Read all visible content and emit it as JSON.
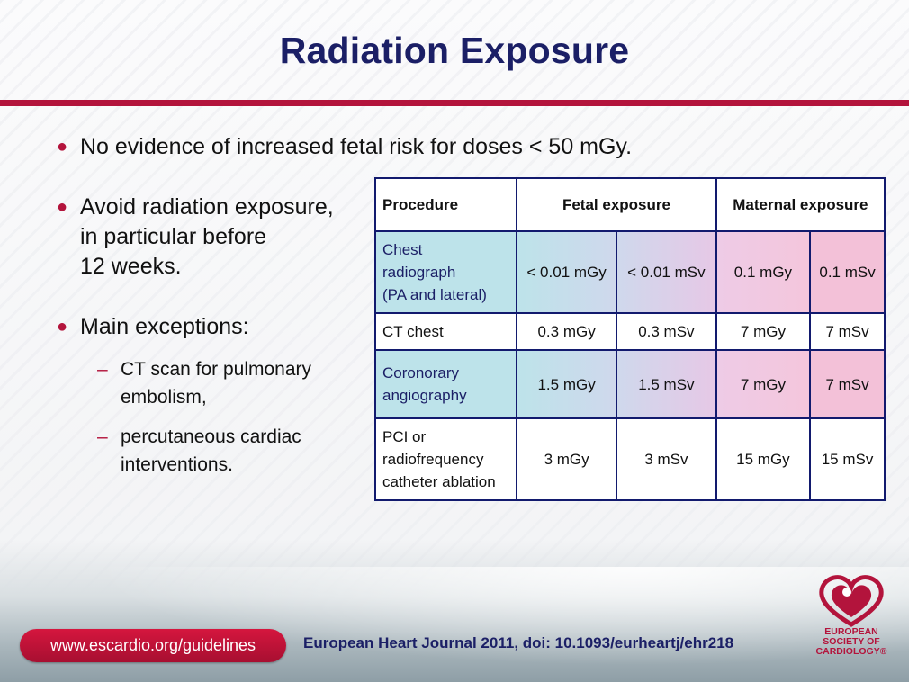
{
  "title": "Radiation Exposure",
  "bullets": {
    "b1": "No evidence of increased fetal risk for doses < 50 mGy.",
    "b2_lines": [
      "Avoid radiation exposure,",
      "in particular before",
      "12 weeks."
    ],
    "b3": "Main exceptions:",
    "subs": [
      [
        "CT scan for pulmonary",
        "embolism,"
      ],
      [
        "percutaneous cardiac",
        "interventions."
      ]
    ]
  },
  "table": {
    "headers": {
      "procedure": "Procedure",
      "fetal": "Fetal exposure",
      "maternal": "Maternal exposure"
    },
    "rows": [
      {
        "procedure": [
          "Chest",
          "radiograph",
          "(PA and lateral)"
        ],
        "values": [
          "< 0.01 mGy",
          "< 0.01 mSv",
          "0.1 mGy",
          "0.1 mSv"
        ]
      },
      {
        "procedure": [
          "CT chest"
        ],
        "values": [
          "0.3 mGy",
          "0.3 mSv",
          "7 mGy",
          "7 mSv"
        ]
      },
      {
        "procedure": [
          "Coronorary",
          "angiography"
        ],
        "values": [
          "1.5 mGy",
          "1.5 mSv",
          "7 mGy",
          "7 mSv"
        ]
      },
      {
        "procedure": [
          "PCI or",
          "radiofrequency",
          "catheter ablation"
        ],
        "values": [
          "3 mGy",
          "3 mSv",
          "15 mGy",
          "15 mSv"
        ]
      }
    ]
  },
  "footer": {
    "url": "www.escardio.org/guidelines",
    "citation": "European Heart Journal 2011, doi: 10.1093/eurheartj/ehr218",
    "logo_text": [
      "EUROPEAN",
      "SOCIETY OF",
      "CARDIOLOGY®"
    ]
  },
  "colors": {
    "accent_red": "#b3143c",
    "title_navy": "#1b1f66",
    "table_border": "#121a6e",
    "fetal_shade": "#bde3ea",
    "maternal_shade": "#f3c1d8"
  }
}
